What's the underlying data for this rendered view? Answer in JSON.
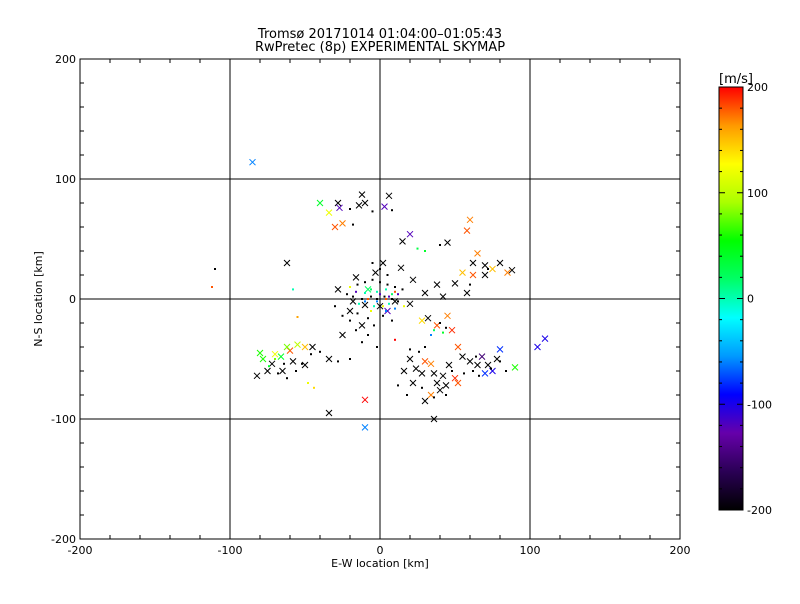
{
  "chart_data": {
    "type": "scatter",
    "title": "Tromsø 20171014 01:04:00–01:05:43",
    "subtitle": "RwPretec (8p) EXPERIMENTAL SKYMAP",
    "xlabel": "E-W location [km]",
    "ylabel": "N-S location [km]",
    "xlim": [
      -200,
      200
    ],
    "ylim": [
      -200,
      200
    ],
    "x_ticks": [
      -200,
      -100,
      0,
      100,
      200
    ],
    "y_ticks": [
      -200,
      -100,
      0,
      100,
      200
    ],
    "x_tick_labels": [
      "-200",
      "-100",
      "0",
      "100",
      "200"
    ],
    "y_tick_labels": [
      "-200",
      "-100",
      "0",
      "100",
      "200"
    ],
    "grid": true,
    "grid_lines": [
      -100,
      0,
      100
    ],
    "colorbar": {
      "unit_label": "[m/s]",
      "range": [
        -200,
        200
      ],
      "ticks": [
        -200,
        -100,
        0,
        100,
        200
      ],
      "tick_labels": [
        "-200",
        "-100",
        "0",
        "100",
        "200"
      ],
      "palette": [
        "#000000",
        "#2a0055",
        "#6600aa",
        "#0000ff",
        "#0099ff",
        "#00ffff",
        "#00ff66",
        "#00ff00",
        "#aaff00",
        "#ffff00",
        "#ff9900",
        "#ff0000"
      ]
    },
    "series": [
      {
        "marker": "x",
        "points": [
          [
            -85,
            114,
            -60
          ],
          [
            -62,
            30,
            -200
          ],
          [
            -28,
            80,
            -200
          ],
          [
            -27,
            76,
            -120
          ],
          [
            -30,
            60,
            180
          ],
          [
            -25,
            63,
            170
          ],
          [
            -34,
            72,
            120
          ],
          [
            -40,
            80,
            40
          ],
          [
            -12,
            87,
            -200
          ],
          [
            -14,
            78,
            -200
          ],
          [
            -10,
            80,
            -200
          ],
          [
            6,
            86,
            -200
          ],
          [
            3,
            77,
            -120
          ],
          [
            20,
            54,
            -120
          ],
          [
            15,
            48,
            -200
          ],
          [
            45,
            47,
            -200
          ],
          [
            58,
            57,
            180
          ],
          [
            60,
            66,
            170
          ],
          [
            62,
            30,
            -200
          ],
          [
            65,
            38,
            170
          ],
          [
            70,
            28,
            -200
          ],
          [
            75,
            25,
            150
          ],
          [
            80,
            30,
            -200
          ],
          [
            85,
            22,
            170
          ],
          [
            88,
            24,
            -200
          ],
          [
            55,
            22,
            150
          ],
          [
            62,
            20,
            180
          ],
          [
            70,
            20,
            -200
          ],
          [
            50,
            13,
            -200
          ],
          [
            58,
            5,
            -200
          ],
          [
            38,
            12,
            -200
          ],
          [
            42,
            2,
            -200
          ],
          [
            30,
            5,
            -200
          ],
          [
            22,
            16,
            -200
          ],
          [
            14,
            26,
            -200
          ],
          [
            2,
            30,
            -200
          ],
          [
            -3,
            22,
            -200
          ],
          [
            -16,
            18,
            -200
          ],
          [
            -8,
            8,
            20
          ],
          [
            -28,
            8,
            -200
          ],
          [
            -18,
            -2,
            -200
          ],
          [
            -10,
            -5,
            -200
          ],
          [
            0,
            -6,
            -200
          ],
          [
            5,
            -10,
            -120
          ],
          [
            10,
            -2,
            -200
          ],
          [
            20,
            -4,
            -200
          ],
          [
            28,
            -18,
            140
          ],
          [
            32,
            -16,
            -200
          ],
          [
            38,
            -22,
            180
          ],
          [
            45,
            -14,
            170
          ],
          [
            48,
            -26,
            190
          ],
          [
            52,
            -40,
            180
          ],
          [
            55,
            -48,
            -200
          ],
          [
            60,
            -52,
            -200
          ],
          [
            65,
            -55,
            -200
          ],
          [
            68,
            -48,
            -150
          ],
          [
            72,
            -55,
            -200
          ],
          [
            75,
            -60,
            -100
          ],
          [
            80,
            -42,
            -80
          ],
          [
            78,
            -50,
            -200
          ],
          [
            70,
            -62,
            -80
          ],
          [
            90,
            -57,
            60
          ],
          [
            105,
            -40,
            -100
          ],
          [
            110,
            -33,
            -100
          ],
          [
            -25,
            -30,
            -200
          ],
          [
            -20,
            -10,
            -200
          ],
          [
            -12,
            -22,
            -200
          ],
          [
            -10,
            -84,
            200
          ],
          [
            -10,
            -107,
            -60
          ],
          [
            -34,
            -95,
            -200
          ],
          [
            36,
            -100,
            -200
          ],
          [
            -34,
            -50,
            -200
          ],
          [
            -45,
            -40,
            -200
          ],
          [
            -50,
            -40,
            150
          ],
          [
            -55,
            -38,
            100
          ],
          [
            -60,
            -43,
            180
          ],
          [
            -62,
            -40,
            80
          ],
          [
            -66,
            -48,
            40
          ],
          [
            -70,
            -46,
            120
          ],
          [
            -72,
            -54,
            -200
          ],
          [
            -75,
            -60,
            -200
          ],
          [
            -78,
            -50,
            60
          ],
          [
            -80,
            -45,
            60
          ],
          [
            -82,
            -64,
            -200
          ],
          [
            -50,
            -55,
            -200
          ],
          [
            -58,
            -52,
            -200
          ],
          [
            -65,
            -60,
            -200
          ],
          [
            20,
            -50,
            -200
          ],
          [
            24,
            -58,
            -200
          ],
          [
            28,
            -62,
            -200
          ],
          [
            30,
            -52,
            180
          ],
          [
            34,
            -54,
            170
          ],
          [
            36,
            -62,
            -200
          ],
          [
            38,
            -70,
            -200
          ],
          [
            40,
            -76,
            -200
          ],
          [
            42,
            -64,
            -200
          ],
          [
            44,
            -72,
            -200
          ],
          [
            30,
            -85,
            -200
          ],
          [
            34,
            -80,
            170
          ],
          [
            50,
            -66,
            190
          ],
          [
            52,
            -70,
            180
          ],
          [
            46,
            -55,
            -200
          ],
          [
            16,
            -60,
            -200
          ],
          [
            22,
            -70,
            -200
          ]
        ]
      },
      {
        "marker": "dot",
        "points": [
          [
            -110,
            25,
            -200
          ],
          [
            -112,
            10,
            180
          ],
          [
            -55,
            -15,
            160
          ],
          [
            -58,
            8,
            0
          ],
          [
            -20,
            75,
            -200
          ],
          [
            -5,
            73,
            -200
          ],
          [
            8,
            74,
            -200
          ],
          [
            -18,
            62,
            -200
          ],
          [
            25,
            42,
            30
          ],
          [
            30,
            40,
            40
          ],
          [
            40,
            45,
            -200
          ],
          [
            60,
            12,
            -200
          ],
          [
            72,
            25,
            -200
          ],
          [
            -5,
            30,
            -200
          ],
          [
            0,
            25,
            -200
          ],
          [
            5,
            20,
            -200
          ],
          [
            -15,
            12,
            -200
          ],
          [
            -10,
            14,
            -200
          ],
          [
            -5,
            16,
            -200
          ],
          [
            0,
            14,
            -200
          ],
          [
            5,
            12,
            -200
          ],
          [
            10,
            10,
            -200
          ],
          [
            15,
            8,
            -200
          ],
          [
            -22,
            4,
            -200
          ],
          [
            -18,
            2,
            -200
          ],
          [
            -12,
            0,
            -200
          ],
          [
            -6,
            2,
            -200
          ],
          [
            -2,
            0,
            -200
          ],
          [
            3,
            2,
            -200
          ],
          [
            8,
            0,
            -200
          ],
          [
            12,
            -2,
            -200
          ],
          [
            -30,
            -6,
            -200
          ],
          [
            -25,
            -14,
            -200
          ],
          [
            -20,
            -18,
            -200
          ],
          [
            -15,
            -12,
            -200
          ],
          [
            -8,
            -16,
            -200
          ],
          [
            -4,
            -22,
            -200
          ],
          [
            2,
            -14,
            -200
          ],
          [
            8,
            -18,
            -200
          ],
          [
            -10,
            5,
            0
          ],
          [
            -6,
            8,
            20
          ],
          [
            -2,
            6,
            0
          ],
          [
            4,
            8,
            0
          ],
          [
            8,
            4,
            20
          ],
          [
            -14,
            -4,
            0
          ],
          [
            -4,
            -6,
            0
          ],
          [
            6,
            -4,
            0
          ],
          [
            -10,
            -2,
            -60
          ],
          [
            -2,
            -2,
            -60
          ],
          [
            4,
            -10,
            -60
          ],
          [
            10,
            -8,
            -60
          ],
          [
            -16,
            6,
            -120
          ],
          [
            0,
            4,
            -120
          ],
          [
            6,
            2,
            -120
          ],
          [
            12,
            4,
            -120
          ],
          [
            -6,
            -10,
            120
          ],
          [
            2,
            -6,
            120
          ],
          [
            -20,
            10,
            120
          ],
          [
            16,
            -6,
            120
          ],
          [
            -8,
            0,
            180
          ],
          [
            4,
            0,
            180
          ],
          [
            10,
            6,
            180
          ],
          [
            40,
            -20,
            -200
          ],
          [
            44,
            -24,
            -200
          ],
          [
            36,
            -26,
            20
          ],
          [
            42,
            -28,
            40
          ],
          [
            34,
            -30,
            -60
          ],
          [
            30,
            -40,
            -200
          ],
          [
            10,
            -34,
            200
          ],
          [
            -8,
            -30,
            -200
          ],
          [
            -12,
            -36,
            -200
          ],
          [
            -20,
            -50,
            -200
          ],
          [
            -28,
            -52,
            -200
          ],
          [
            -40,
            -44,
            -200
          ],
          [
            -46,
            -46,
            -200
          ],
          [
            -52,
            -54,
            -200
          ],
          [
            -56,
            -60,
            -200
          ],
          [
            -62,
            -66,
            -200
          ],
          [
            -68,
            -62,
            -200
          ],
          [
            -74,
            -56,
            40
          ],
          [
            -70,
            -50,
            80
          ],
          [
            -64,
            -54,
            -200
          ],
          [
            -48,
            -70,
            120
          ],
          [
            -44,
            -74,
            140
          ],
          [
            20,
            -42,
            -200
          ],
          [
            26,
            -44,
            -200
          ],
          [
            18,
            -80,
            -200
          ],
          [
            12,
            -72,
            -200
          ],
          [
            48,
            -60,
            -200
          ],
          [
            56,
            -62,
            -200
          ],
          [
            62,
            -60,
            -200
          ],
          [
            66,
            -64,
            -200
          ],
          [
            74,
            -58,
            -200
          ],
          [
            64,
            -48,
            -200
          ],
          [
            80,
            -52,
            -200
          ],
          [
            84,
            -60,
            -200
          ],
          [
            28,
            -74,
            -200
          ],
          [
            36,
            -82,
            -200
          ],
          [
            44,
            -80,
            -200
          ],
          [
            -2,
            -40,
            -200
          ],
          [
            -16,
            -26,
            -200
          ]
        ]
      }
    ]
  }
}
